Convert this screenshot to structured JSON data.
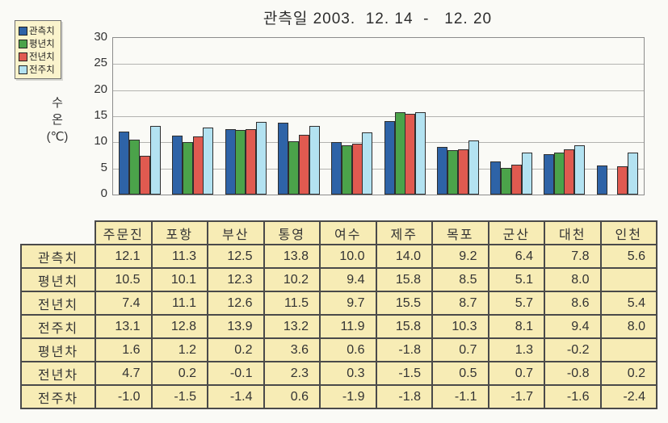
{
  "page": {
    "background": "#fafaf6"
  },
  "chart_data": {
    "type": "bar",
    "title": "관측일 2003.  12. 14  -   12. 20",
    "ylabel": "수온 (℃)",
    "ylabel_lines": [
      "수",
      "온",
      "(℃)"
    ],
    "ylim": [
      0,
      30
    ],
    "ytick_step": 5,
    "yticks": [
      0,
      5,
      10,
      15,
      20,
      25,
      30
    ],
    "grid": true,
    "legend_position": "top-left",
    "categories": [
      "주문진",
      "포항",
      "부산",
      "통영",
      "여수",
      "제주",
      "목포",
      "군산",
      "대천",
      "인천"
    ],
    "series": [
      {
        "name": "관측치",
        "color": "#2e63a7",
        "values": [
          12.1,
          11.3,
          12.5,
          13.8,
          10.0,
          14.0,
          9.2,
          6.4,
          7.8,
          5.6
        ]
      },
      {
        "name": "평년치",
        "color": "#4ba34a",
        "values": [
          10.5,
          10.1,
          12.3,
          10.2,
          9.4,
          15.8,
          8.5,
          5.1,
          8.0,
          null
        ]
      },
      {
        "name": "전년치",
        "color": "#e05a50",
        "values": [
          7.4,
          11.1,
          12.6,
          11.5,
          9.7,
          15.5,
          8.7,
          5.7,
          8.6,
          5.4
        ]
      },
      {
        "name": "전주치",
        "color": "#b3e2f1",
        "values": [
          13.1,
          12.8,
          13.9,
          13.2,
          11.9,
          15.8,
          10.3,
          8.1,
          9.4,
          8.0
        ]
      }
    ]
  },
  "table": {
    "corner": "",
    "cell_background": "#f7ecb5",
    "columns": [
      "주문진",
      "포항",
      "부산",
      "통영",
      "여수",
      "제주",
      "목포",
      "군산",
      "대천",
      "인천"
    ],
    "rows": [
      {
        "label": "관측치",
        "values": [
          "12.1",
          "11.3",
          "12.5",
          "13.8",
          "10.0",
          "14.0",
          "9.2",
          "6.4",
          "7.8",
          "5.6"
        ]
      },
      {
        "label": "평년치",
        "values": [
          "10.5",
          "10.1",
          "12.3",
          "10.2",
          "9.4",
          "15.8",
          "8.5",
          "5.1",
          "8.0",
          ""
        ]
      },
      {
        "label": "전년치",
        "values": [
          "7.4",
          "11.1",
          "12.6",
          "11.5",
          "9.7",
          "15.5",
          "8.7",
          "5.7",
          "8.6",
          "5.4"
        ]
      },
      {
        "label": "전주치",
        "values": [
          "13.1",
          "12.8",
          "13.9",
          "13.2",
          "11.9",
          "15.8",
          "10.3",
          "8.1",
          "9.4",
          "8.0"
        ]
      },
      {
        "label": "평년차",
        "values": [
          "1.6",
          "1.2",
          "0.2",
          "3.6",
          "0.6",
          "-1.8",
          "0.7",
          "1.3",
          "-0.2",
          ""
        ]
      },
      {
        "label": "전년차",
        "values": [
          "4.7",
          "0.2",
          "-0.1",
          "2.3",
          "0.3",
          "-1.5",
          "0.5",
          "0.7",
          "-0.8",
          "0.2"
        ]
      },
      {
        "label": "전주차",
        "values": [
          "-1.0",
          "-1.5",
          "-1.4",
          "0.6",
          "-1.9",
          "-1.8",
          "-1.1",
          "-1.7",
          "-1.6",
          "-2.4"
        ]
      }
    ]
  }
}
